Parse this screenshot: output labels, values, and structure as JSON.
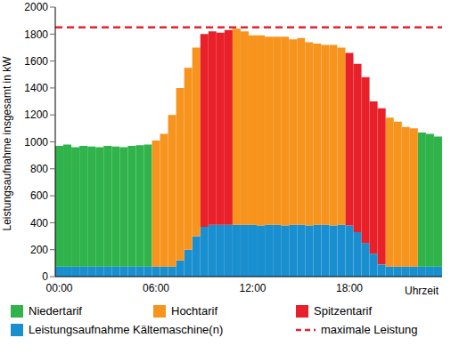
{
  "chart_data": {
    "type": "bar",
    "stacked": true,
    "grid": false,
    "y_label": "Leistungsaufnahme insgesamt in kW",
    "x_label": "Uhrzeit",
    "categories": [
      "00:00",
      null,
      null,
      null,
      null,
      null,
      null,
      null,
      null,
      null,
      null,
      null,
      "06:00",
      null,
      null,
      null,
      null,
      null,
      null,
      null,
      null,
      null,
      null,
      null,
      "12:00",
      null,
      null,
      null,
      null,
      null,
      null,
      null,
      null,
      null,
      null,
      null,
      "18:00",
      null,
      null,
      null,
      null,
      null,
      null,
      null,
      null,
      null,
      null,
      null
    ],
    "ylim": [
      0,
      2000
    ],
    "yticks": [
      0,
      200,
      400,
      600,
      800,
      1000,
      1200,
      1400,
      1600,
      1800,
      2000
    ],
    "series": [
      {
        "name": "Niedertarif",
        "color": "#2fb34a",
        "values": [
          895,
          905,
          885,
          895,
          890,
          885,
          895,
          890,
          885,
          895,
          900,
          905,
          null,
          null,
          null,
          null,
          null,
          null,
          null,
          null,
          null,
          null,
          null,
          null,
          null,
          null,
          null,
          null,
          null,
          null,
          null,
          null,
          null,
          null,
          null,
          null,
          null,
          null,
          null,
          null,
          null,
          null,
          null,
          null,
          null,
          995,
          985,
          965
        ]
      },
      {
        "name": "Hochtarif",
        "color": "#f7941d",
        "values": [
          null,
          null,
          null,
          null,
          null,
          null,
          null,
          null,
          null,
          null,
          null,
          null,
          935,
          985,
          1125,
          1280,
          1350,
          1400,
          null,
          null,
          null,
          null,
          1455,
          1435,
          1405,
          1410,
          1395,
          1395,
          1400,
          1375,
          1385,
          1360,
          1345,
          1335,
          1340,
          1315,
          null,
          null,
          null,
          null,
          null,
          1105,
          1075,
          1035,
          1025,
          null,
          null,
          null
        ]
      },
      {
        "name": "Spitzentarif",
        "color": "#e8202a",
        "values": [
          null,
          null,
          null,
          null,
          null,
          null,
          null,
          null,
          null,
          null,
          null,
          null,
          null,
          null,
          null,
          null,
          null,
          null,
          1430,
          1435,
          1425,
          1445,
          null,
          null,
          null,
          null,
          null,
          null,
          null,
          null,
          null,
          null,
          null,
          null,
          null,
          null,
          1280,
          1250,
          1230,
          1130,
          1160,
          null,
          null,
          null,
          null,
          null,
          null,
          null
        ]
      },
      {
        "name": "Leistungsaufnahme Kältemaschine(n)",
        "color": "#1a8fd0",
        "values": [
          75,
          75,
          75,
          75,
          75,
          75,
          75,
          75,
          75,
          75,
          75,
          75,
          75,
          75,
          75,
          120,
          200,
          300,
          370,
          385,
          385,
          385,
          385,
          385,
          385,
          380,
          385,
          385,
          380,
          385,
          385,
          380,
          385,
          385,
          380,
          385,
          380,
          330,
          250,
          170,
          90,
          75,
          75,
          75,
          75,
          75,
          75,
          75
        ]
      }
    ],
    "reference_lines": [
      {
        "name": "maximale Leistung",
        "value": 1850,
        "color": "#e8202a",
        "line_style": "dashed"
      }
    ]
  }
}
